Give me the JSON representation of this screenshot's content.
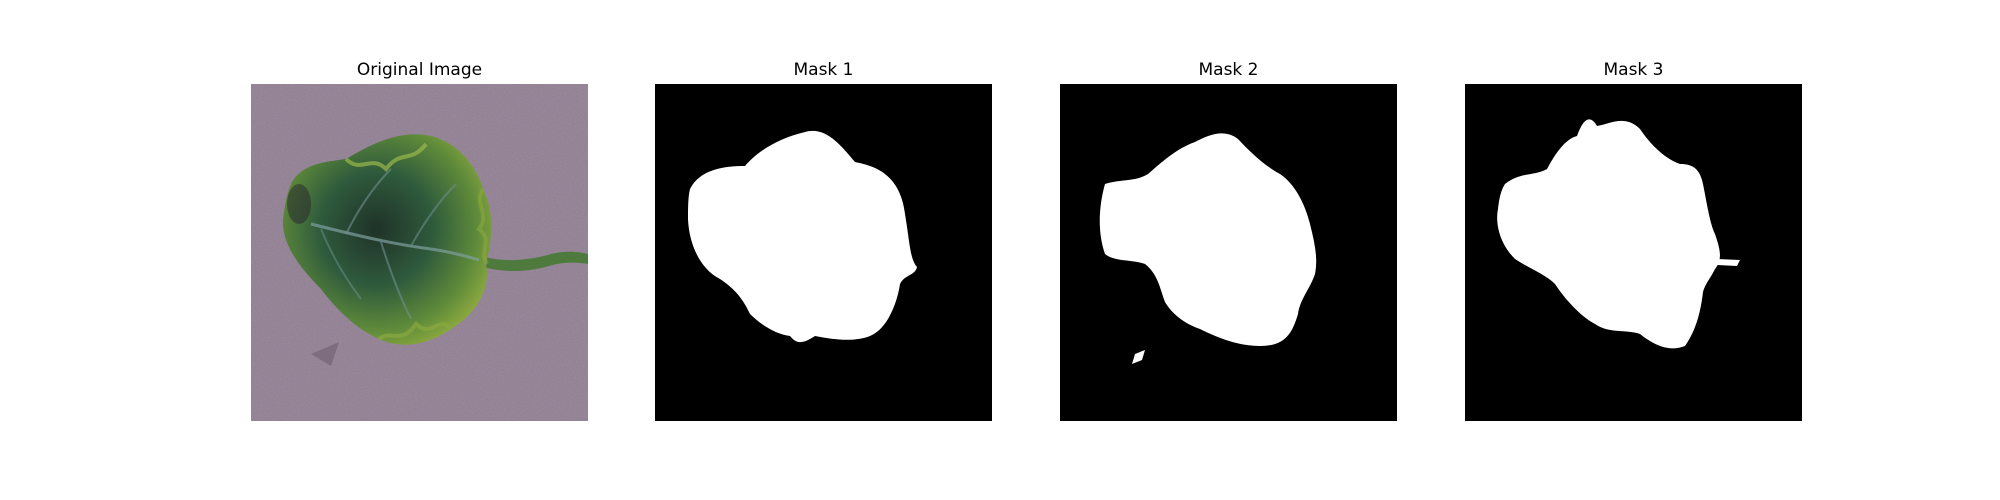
{
  "panels": [
    {
      "title": "Original Image",
      "kind": "photo",
      "subject": "leaf-photo",
      "colors": {
        "background": "#8a7a8c",
        "leaf_dark": "#1f3a2a",
        "leaf_mid": "#3f6a3a",
        "leaf_light": "#7a9a3a"
      }
    },
    {
      "title": "Mask 1",
      "kind": "mask",
      "colors": {
        "background": "#000000",
        "foreground": "#ffffff"
      }
    },
    {
      "title": "Mask 2",
      "kind": "mask",
      "colors": {
        "background": "#000000",
        "foreground": "#ffffff"
      }
    },
    {
      "title": "Mask 3",
      "kind": "mask",
      "colors": {
        "background": "#000000",
        "foreground": "#ffffff"
      }
    }
  ]
}
